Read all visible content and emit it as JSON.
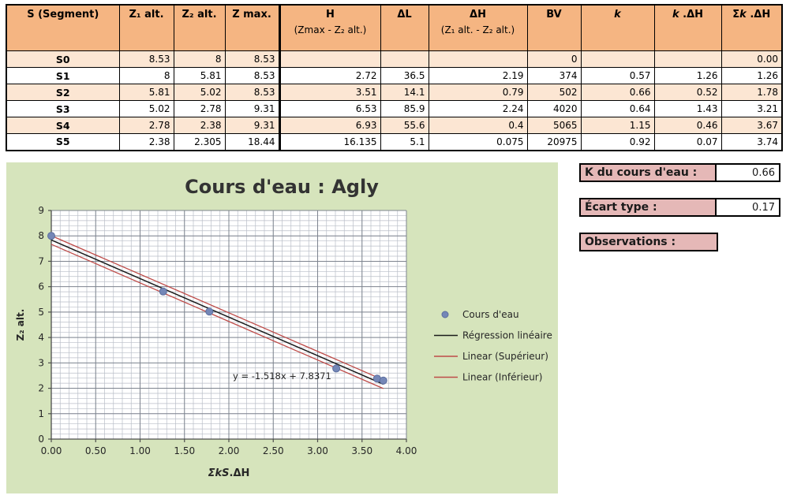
{
  "table": {
    "columns": [
      {
        "id": "segment",
        "label": "S (Segment)",
        "sub": ""
      },
      {
        "id": "z1",
        "label": "Z₁ alt.",
        "sub": ""
      },
      {
        "id": "z2",
        "label": "Z₂ alt.",
        "sub": ""
      },
      {
        "id": "zmax",
        "label": "Z max.",
        "sub": ""
      },
      {
        "id": "h",
        "label": "H",
        "sub": "(Zmax - Z₂ alt.)"
      },
      {
        "id": "dl",
        "label": "ΔL",
        "sub": ""
      },
      {
        "id": "dh",
        "label": "ΔH",
        "sub": "(Z₁ alt. - Z₂ alt.)"
      },
      {
        "id": "bv",
        "label": "BV",
        "sub": ""
      },
      {
        "id": "k",
        "label": "*k*",
        "sub": ""
      },
      {
        "id": "kdh",
        "label": "*k* .ΔH",
        "sub": ""
      },
      {
        "id": "skdh",
        "label": "Σ*k* .ΔH",
        "sub": ""
      }
    ],
    "rows": [
      [
        "S0",
        "8.53",
        "8",
        "8.53",
        "",
        "",
        "",
        "0",
        "",
        "",
        "0.00"
      ],
      [
        "S1",
        "8",
        "5.81",
        "8.53",
        "2.72",
        "36.5",
        "2.19",
        "374",
        "0.57",
        "1.26",
        "1.26"
      ],
      [
        "S2",
        "5.81",
        "5.02",
        "8.53",
        "3.51",
        "14.1",
        "0.79",
        "502",
        "0.66",
        "0.52",
        "1.78"
      ],
      [
        "S3",
        "5.02",
        "2.78",
        "9.31",
        "6.53",
        "85.9",
        "2.24",
        "4020",
        "0.64",
        "1.43",
        "3.21"
      ],
      [
        "S4",
        "2.78",
        "2.38",
        "9.31",
        "6.93",
        "55.6",
        "0.4",
        "5065",
        "1.15",
        "0.46",
        "3.67"
      ],
      [
        "S5",
        "2.38",
        "2.305",
        "18.44",
        "16.135",
        "5.1",
        "0.075",
        "20975",
        "0.92",
        "0.07",
        "3.74"
      ]
    ]
  },
  "panel": {
    "k_label": "K du cours d'eau :",
    "k_value": "0.66",
    "ecart_label": "Écart type :",
    "ecart_value": "0.17",
    "obs_label": "Observations :"
  },
  "chart_data": {
    "type": "scatter",
    "title": "Cours d'eau : Agly",
    "xlabel_parts": [
      {
        "t": "ΣkS",
        "italic": true
      },
      {
        "t": ".ΔH",
        "italic": false
      }
    ],
    "ylabel": "Z₂ alt.",
    "xlim": [
      0,
      4
    ],
    "ylim": [
      0,
      9
    ],
    "x_major_step": 0.5,
    "y_major_step": 1,
    "x_minor_step": 0.1,
    "y_minor_step": 0.2,
    "x_tick_labels": [
      "0.00",
      "0.50",
      "1.00",
      "1.50",
      "2.00",
      "2.50",
      "3.00",
      "3.50",
      "4.00"
    ],
    "y_tick_labels": [
      "0",
      "1",
      "2",
      "3",
      "4",
      "5",
      "6",
      "7",
      "8",
      "9"
    ],
    "grid": true,
    "legend_position": "right",
    "annotation": "y = -1.518x + 7.8371",
    "series": [
      {
        "name": "Cours d'eau",
        "kind": "scatter",
        "points": [
          [
            0,
            8
          ],
          [
            1.26,
            5.81
          ],
          [
            1.78,
            5.02
          ],
          [
            3.21,
            2.78
          ],
          [
            3.67,
            2.38
          ],
          [
            3.74,
            2.305
          ]
        ]
      },
      {
        "name": "Régression linéaire",
        "kind": "line",
        "slope": -1.518,
        "intercept": 7.8371,
        "x_range": [
          0,
          3.74
        ]
      },
      {
        "name": "Linear (Supérieur)",
        "kind": "line",
        "slope": -1.518,
        "intercept": 8.0071,
        "x_range": [
          0,
          3.74
        ]
      },
      {
        "name": "Linear (Inférieur)",
        "kind": "line",
        "slope": -1.518,
        "intercept": 7.6671,
        "x_range": [
          0,
          3.74
        ]
      }
    ]
  },
  "colors": {
    "header_bg": "#F5B582",
    "row_alt_bg": "#FCE6D3",
    "panel_pink": "#E5B8B7",
    "chart_bg": "#D6E4BC",
    "plot_bg": "#FFFFFF",
    "grid_minor": "#B9BEC7",
    "grid_major": "#7E848F",
    "axis": "#4D4D4D",
    "point_fill": "#7487B7",
    "point_stroke": "#5B6E9E",
    "regression": "#1A1A1A",
    "bounds": "#BE4B48",
    "text": "#262626"
  }
}
